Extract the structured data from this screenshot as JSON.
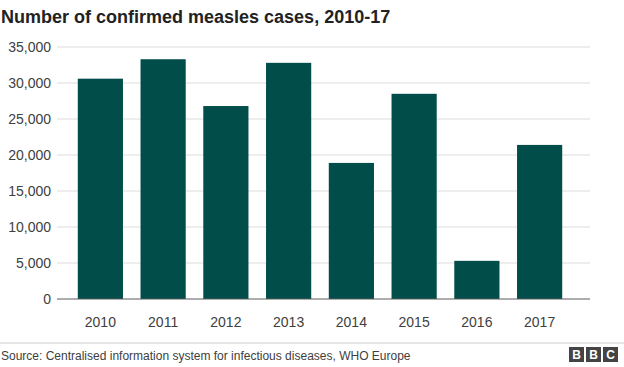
{
  "chart_data": {
    "type": "bar",
    "title": "Number of confirmed measles cases, 2010-17",
    "categories": [
      "2010",
      "2011",
      "2012",
      "2013",
      "2014",
      "2015",
      "2016",
      "2017"
    ],
    "values": [
      30600,
      33300,
      26800,
      32800,
      18900,
      28500,
      5300,
      21400
    ],
    "color": "#004d4a",
    "ylim": [
      0,
      35000
    ],
    "yticks": [
      0,
      {
        "value": 5000,
        "label": "5,000"
      },
      {
        "value": 10000,
        "label": "10,000"
      },
      {
        "value": 15000,
        "label": "15,000"
      },
      {
        "value": 20000,
        "label": "20,000"
      },
      {
        "value": 25000,
        "label": "25,000"
      },
      {
        "value": 30000,
        "label": "30,000"
      },
      {
        "value": 35000,
        "label": "35,000"
      }
    ],
    "grid": true,
    "source": "Source: Centralised information system for infectious diseases, WHO Europe",
    "credit": "BBC"
  }
}
